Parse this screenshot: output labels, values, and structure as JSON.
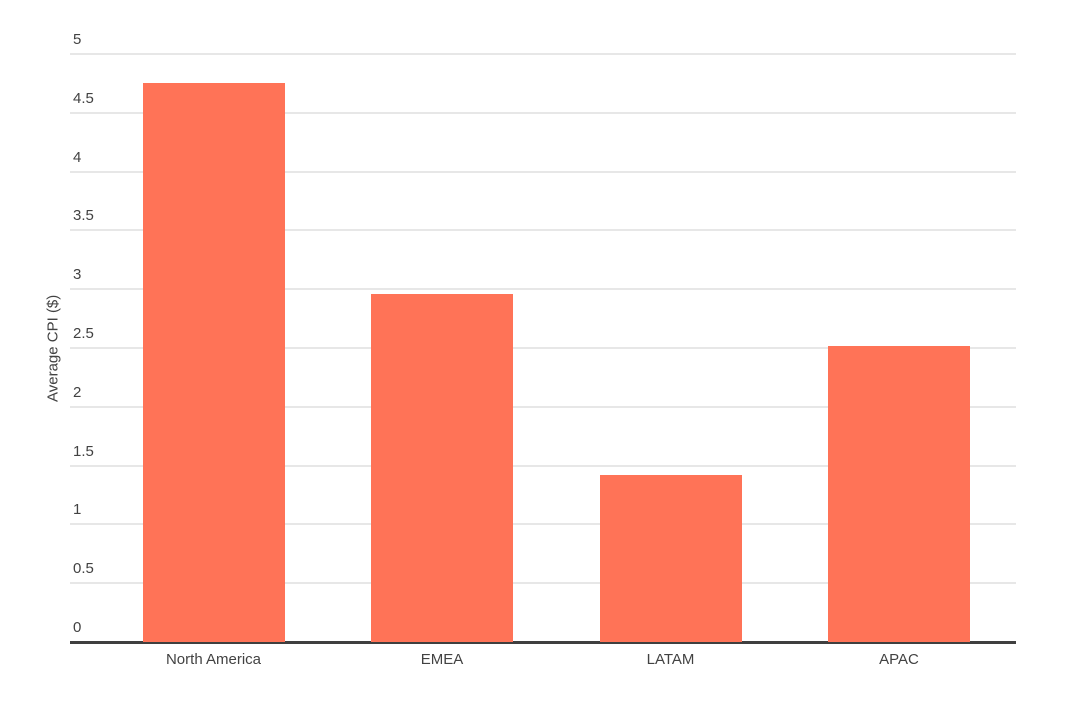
{
  "chart_data": {
    "type": "bar",
    "categories": [
      "North America",
      "EMEA",
      "LATAM",
      "APAC"
    ],
    "values": [
      4.75,
      2.96,
      1.42,
      2.52
    ],
    "ylabel": "Average CPI ($)",
    "xlabel": "",
    "title": "",
    "ylim": [
      0,
      5
    ],
    "ytick_step": 0.5,
    "ytick_labels": [
      "0",
      "0.5",
      "1",
      "1.5",
      "2",
      "2.5",
      "3",
      "3.5",
      "4",
      "4.5",
      "5"
    ],
    "grid": true,
    "legend": "none",
    "colors": {
      "bar": "#ff7357",
      "text": "#424242",
      "gridline": "#e7e7e7",
      "baseline": "#3f3f3f",
      "background": "#ffffff"
    }
  }
}
